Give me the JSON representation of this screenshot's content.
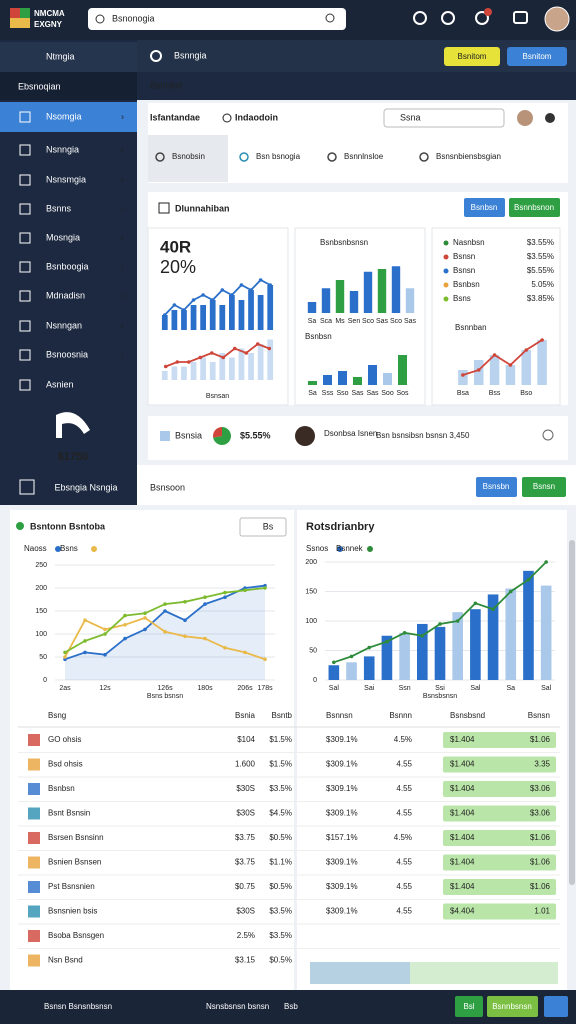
{
  "topbar": {
    "logo_line1": "NMCMA",
    "logo_line2": "EXGNY",
    "search": "Bsnonogia"
  },
  "header": {
    "title": "Bsnngia",
    "subtitle": "Bsnnbsl",
    "buttons": [
      "Bsnitom",
      "Bsnitom"
    ]
  },
  "sidebar": {
    "top": "Ntmgia",
    "section": "Ebsnoqian",
    "items": [
      "Nsomgia",
      "Nsnngia",
      "Nsnsmgia",
      "Bsnns",
      "Mosngia",
      "Bsnboogia",
      "Mdnadisn",
      "Nsnngan",
      "Bsnoosnia",
      "Asnien"
    ],
    "brand": "$1750",
    "footer": "Ebsngia Nsngia"
  },
  "toolbar": {
    "title": "Isfantandae",
    "subtitle": "Indaodoin",
    "search": "Ssna",
    "tabs": [
      "Bsnobsin",
      "Bsn bsnogia",
      "Bsnnlnsloe",
      "Bsnsnbiensbsgian"
    ]
  },
  "overview": {
    "title": "Dlunnahiban",
    "buttons": [
      "Bsnbsn",
      "Bsnnbsnon"
    ],
    "kpi": "40R",
    "kpi_change": "20%",
    "legend": [
      {
        "label": "Nasnbsn",
        "value": "$3.55%"
      },
      {
        "label": "Bsnsn",
        "value": "$3.55%"
      },
      {
        "label": "Bsnsn",
        "value": "$5.55%"
      },
      {
        "label": "Bsnbsn",
        "value": "5.05%"
      },
      {
        "label": "Bsns",
        "value": "$3.85%"
      }
    ]
  },
  "status": {
    "label": "Bsnsia",
    "pie_label": "$5.55%",
    "user": "Dsonbsa Isnen",
    "detail": "Bsn bsnsibsn bsnsn 3,450"
  },
  "section": {
    "title": "Bsnsoon",
    "buttons": [
      "Bsnsbn",
      "Bsnsn"
    ]
  },
  "panels": {
    "left_title": "Bsntonn Bsntoba",
    "left_button": "Bs",
    "right_title": "Rotsdrianbry"
  },
  "table": {
    "headers": [
      "Bsng",
      "Bsnia",
      "Bsntb",
      "Bsnnsn",
      "Bsnnn",
      "Bsnsbsnd",
      "Bsnsn"
    ],
    "rows": [
      [
        "GO ohsis",
        "$104",
        "$1.5%",
        "$309.1%",
        "4.5%",
        "$1.404",
        "$1.06"
      ],
      [
        "Bsd ohsis",
        "1.600",
        "$1.5%",
        "$309.1%",
        "4.55",
        "$1.404",
        "3.35"
      ],
      [
        "Bsnbsn",
        "$30S",
        "$3.5%",
        "$309.1%",
        "4.55",
        "$1.404",
        "$3.06"
      ],
      [
        "Bsnt Bsnsin",
        "$30S",
        "$4.5%",
        "$309.1%",
        "4.55",
        "$1.404",
        "$3.06"
      ],
      [
        "Bsrsen Bsnsinn",
        "$3.75",
        "$0.5%",
        "$157.1%",
        "4.5%",
        "$1.404",
        "$1.06"
      ],
      [
        "Bsnien Bsnsen",
        "$3.75",
        "$1.1%",
        "$309.1%",
        "4.55",
        "$1.404",
        "$1.06"
      ],
      [
        "Pst Bsnsnien",
        "$0.75",
        "$0.5%",
        "$309.1%",
        "4.55",
        "$1.404",
        "$1.06"
      ],
      [
        "Bsnsnien bsis",
        "$30S",
        "$3.5%",
        "$309.1%",
        "4.55",
        "$4.404",
        "1.01"
      ],
      [
        "Bsoba Bsnsgen",
        "2.5%",
        "$3.5%",
        "",
        "",
        "",
        ""
      ],
      [
        "Nsn Bsnd",
        "$3.15",
        "$0.5%",
        "",
        "",
        "",
        ""
      ]
    ]
  },
  "bottombar": {
    "texts": [
      "Bsnsn Bsnsnbsnsn",
      "Nsnsbsnsn bsnsn",
      "Bsb"
    ],
    "buttons": [
      "Bsl",
      "Bsnnbsnsn"
    ]
  },
  "chart_data": [
    {
      "type": "bar",
      "values": [
        3,
        4,
        4,
        5,
        5,
        6,
        5,
        7,
        6,
        8,
        7,
        9
      ],
      "ylim": [
        0,
        12
      ],
      "color": "#2a6fc9"
    },
    {
      "type": "line",
      "values": [
        3,
        5,
        4,
        6,
        7,
        6,
        8,
        7,
        9,
        8,
        10,
        9
      ],
      "ylim": [
        0,
        12
      ],
      "color": "#2a6fc9"
    },
    {
      "type": "bar",
      "values": [
        2,
        3,
        3,
        4,
        5,
        4,
        6,
        5,
        7,
        6,
        8,
        9
      ],
      "ylim": [
        0,
        10
      ],
      "color": "#c9dcf2",
      "x_label": "Bsnsan"
    },
    {
      "type": "line",
      "values": [
        3,
        4,
        4,
        5,
        6,
        5,
        7,
        6,
        8,
        7
      ],
      "ylim": [
        0,
        10
      ],
      "color": "#d0453a"
    },
    {
      "type": "bar",
      "title": "Bsnbsnbsnsn",
      "categories": [
        "Sa",
        "Sca",
        "Ms",
        "Sen",
        "Sco",
        "Sas",
        "Sco",
        "Sas"
      ],
      "values": [
        20,
        45,
        60,
        40,
        75,
        80,
        85,
        45
      ],
      "ylim": [
        0,
        100
      ],
      "colors": [
        "#2a6fc9",
        "#2a6fc9",
        "#2ea043",
        "#2a6fc9",
        "#2a6fc9",
        "#2ea043",
        "#2a6fc9",
        "#a9c8ea"
      ]
    },
    {
      "type": "bar",
      "title": "Bsnbsn",
      "categories": [
        "Sa",
        "Sss",
        "Sso",
        "Sas",
        "Sas",
        "Soo",
        "Sos"
      ],
      "values": [
        10,
        25,
        35,
        20,
        50,
        30,
        75
      ],
      "ylim": [
        0,
        100
      ],
      "colors": [
        "#2ea043",
        "#2a6fc9",
        "#2a6fc9",
        "#2ea043",
        "#2a6fc9",
        "#a9c8ea",
        "#2ea043"
      ]
    },
    {
      "type": "bar",
      "title": "Bsnnban",
      "categories": [
        "Bsa",
        null,
        "Bss",
        null,
        "Bso",
        null
      ],
      "values": [
        3,
        5,
        6,
        4,
        7,
        9
      ],
      "ylim": [
        0,
        10
      ],
      "color": "#b9d2ee"
    },
    {
      "type": "line",
      "categories": [
        "2as",
        null,
        "12s",
        null,
        null,
        "126s",
        null,
        "180s",
        null,
        "206s",
        "178s"
      ],
      "series": [
        {
          "name": "Naoss",
          "color": "#2a6fc9",
          "values": [
            45,
            60,
            55,
            90,
            110,
            150,
            130,
            165,
            180,
            200,
            205
          ]
        },
        {
          "name": "Bsns",
          "color": "#e9b949",
          "values": [
            50,
            130,
            110,
            120,
            135,
            105,
            95,
            90,
            70,
            60,
            45
          ]
        }
      ],
      "ylim": [
        0,
        250
      ],
      "yticks": [
        0,
        50,
        100,
        150,
        200,
        250
      ],
      "grid": true,
      "area": true,
      "x_label": "Bsns bsnsn"
    },
    {
      "type": "line",
      "values": [
        60,
        85,
        100,
        140,
        145,
        165,
        170,
        180,
        190,
        195,
        200
      ],
      "ylim": [
        0,
        250
      ],
      "color": "#7dbb2e"
    },
    {
      "type": "bar",
      "categories": [
        "Sal",
        null,
        "Sai",
        null,
        "Ssn",
        null,
        "Ssi",
        null,
        "Sal",
        null,
        "Sa",
        null,
        "Sal"
      ],
      "series": [
        {
          "name": "Ssnos",
          "color": "#2a6fc9",
          "values": [
            25,
            30,
            40,
            75,
            80,
            95,
            90,
            115,
            120,
            145,
            155,
            185,
            160
          ]
        }
      ],
      "colors": [
        "#2a6fc9",
        "#a9c8ea",
        "#2a6fc9",
        "#2a6fc9",
        "#a9c8ea",
        "#2a6fc9",
        "#2a6fc9",
        "#a9c8ea",
        "#2a6fc9",
        "#2a6fc9",
        "#a9c8ea",
        "#2a6fc9",
        "#a9c8ea"
      ],
      "ylim": [
        0,
        200
      ],
      "yticks": [
        0,
        50,
        100,
        150,
        200
      ],
      "grid": true,
      "x_label": "Bsnsbsnsn"
    },
    {
      "type": "line",
      "series": [
        {
          "name": "Bsnnek",
          "color": "#2e8b3a",
          "values": [
            30,
            40,
            55,
            65,
            80,
            75,
            95,
            100,
            130,
            120,
            150,
            170,
            200
          ]
        }
      ],
      "ylim": [
        0,
        200
      ]
    },
    {
      "type": "line",
      "values": [
        2,
        3,
        6,
        4,
        7,
        9
      ],
      "ylim": [
        0,
        10
      ],
      "color": "#d0453a"
    },
    {
      "type": "pie",
      "values": [
        72,
        28
      ],
      "colors": [
        "#2ea043",
        "#d0453a"
      ]
    }
  ]
}
